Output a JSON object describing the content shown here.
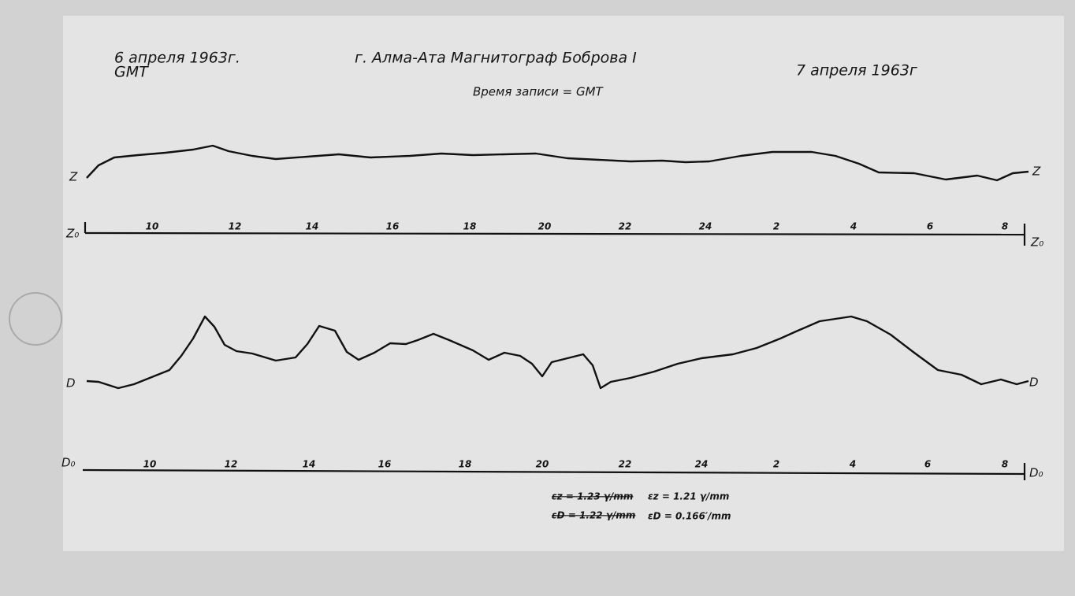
{
  "header": {
    "date_left": "6 апреля 1963г.",
    "timezone": "GMT",
    "title": "г. Алма-Ата  Магнитограф Боброва I",
    "date_right": "7 апреля 1963г",
    "subtitle": "Время записи = GMT"
  },
  "z_trace": {
    "label": "Z",
    "label_right": "Z",
    "baseline_label": "Z₀",
    "baseline_label_right": "Z₀",
    "hours": [
      10,
      12,
      14,
      16,
      18,
      20,
      22,
      24,
      2,
      4,
      6,
      8
    ]
  },
  "d_trace": {
    "label": "D",
    "label_right": "D",
    "baseline_label": "D₀",
    "baseline_label_right": "D₀",
    "hours": [
      10,
      12,
      14,
      16,
      18,
      20,
      22,
      24,
      2,
      4,
      6,
      8
    ]
  },
  "scale_notes": {
    "struck": [
      "εz = 1.23 γ/mm",
      "εD = 1.22 γ/mm"
    ],
    "current": [
      "εz = 1.21 γ/mm",
      "εD = 0.166′/mm"
    ]
  }
}
